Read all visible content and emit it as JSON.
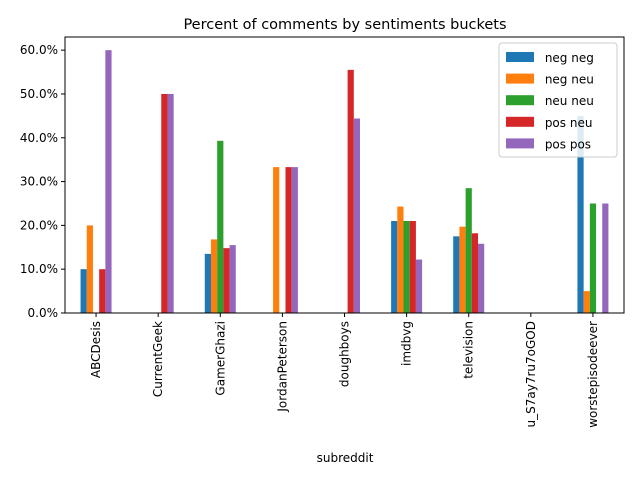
{
  "chart_data": {
    "type": "bar",
    "title": "Percent of comments by sentiments buckets",
    "xlabel": "subreddit",
    "ylabel": "",
    "ylim": [
      0,
      0.63
    ],
    "yticks": [
      0.0,
      0.1,
      0.2,
      0.3,
      0.4,
      0.5,
      0.6
    ],
    "ytick_labels": [
      "0.0%",
      "10.0%",
      "20.0%",
      "30.0%",
      "40.0%",
      "50.0%",
      "60.0%"
    ],
    "legend_position": "top-right",
    "grid": false,
    "categories": [
      "ABCDesis",
      "CurrentGeek",
      "GamerGhazi",
      "JordanPeterson",
      "doughboys",
      "imdbvg",
      "television",
      "u_S7ay7ru7oGOD",
      "worstepisodeever"
    ],
    "series": [
      {
        "name": " neg neg",
        "color": "#1f77b4",
        "values": [
          0.1,
          0.0,
          0.135,
          0.0,
          0.0,
          0.21,
          0.175,
          0.0,
          0.45
        ]
      },
      {
        "name": " neg neu",
        "color": "#ff7f0e",
        "values": [
          0.2,
          0.0,
          0.168,
          0.333,
          0.0,
          0.243,
          0.197,
          0.0,
          0.05
        ]
      },
      {
        "name": " neu neu",
        "color": "#2ca02c",
        "values": [
          0.0,
          0.0,
          0.393,
          0.0,
          0.0,
          0.21,
          0.285,
          0.0,
          0.25
        ]
      },
      {
        "name": " pos neu",
        "color": "#d62728",
        "values": [
          0.1,
          0.5,
          0.148,
          0.333,
          0.555,
          0.21,
          0.182,
          0.0,
          0.0
        ]
      },
      {
        "name": " pos pos",
        "color": "#9467bd",
        "values": [
          0.6,
          0.5,
          0.155,
          0.333,
          0.444,
          0.122,
          0.158,
          0.0,
          0.25
        ]
      }
    ]
  }
}
